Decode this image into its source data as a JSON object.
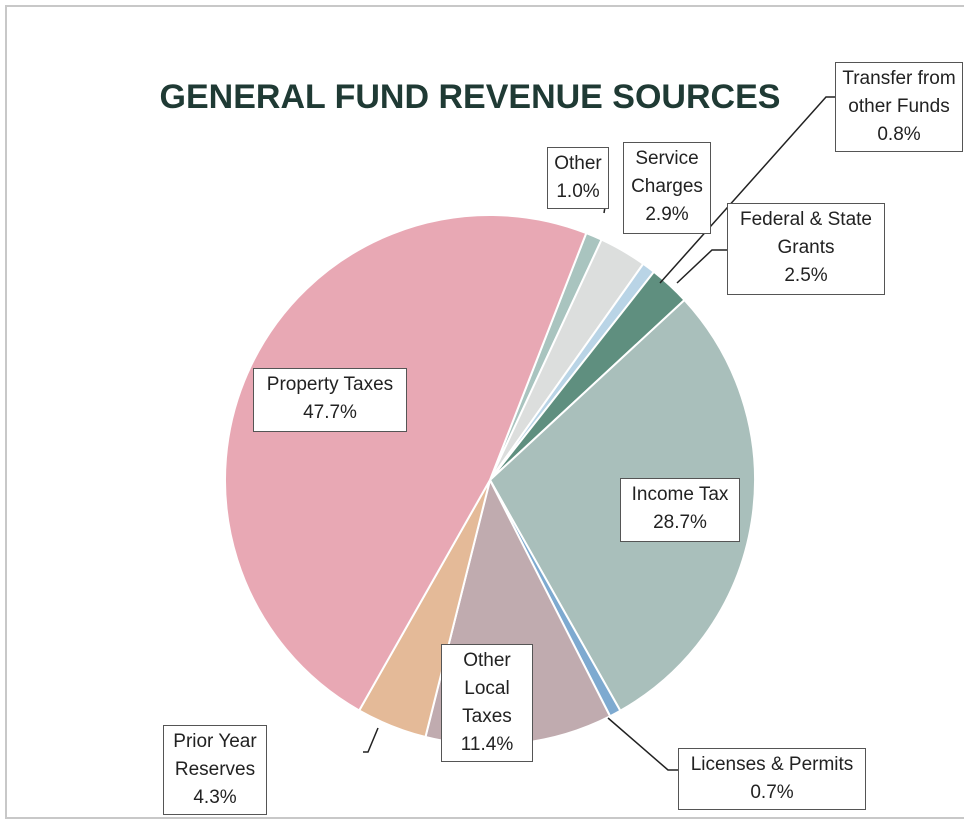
{
  "chart_data": {
    "type": "pie",
    "title": "GENERAL FUND REVENUE SOURCES",
    "categories": [
      "Other",
      "Service Charges",
      "Transfer from other Funds",
      "Federal & State Grants",
      "Income Tax",
      "Licenses & Permits",
      "Other Local Taxes",
      "Prior Year Reserves",
      "Property Taxes"
    ],
    "values": [
      1.0,
      2.9,
      0.8,
      2.5,
      28.7,
      0.7,
      11.4,
      4.3,
      47.7
    ],
    "value_labels": [
      "1.0%",
      "2.9%",
      "0.8%",
      "2.5%",
      "28.7%",
      "0.7%",
      "11.4%",
      "4.3%",
      "47.7%"
    ],
    "colors": [
      "#a9c4bf",
      "#dcdedd",
      "#b9d4e6",
      "#5f8f7f",
      "#a9bfbb",
      "#7eaad0",
      "#c0abaf",
      "#e4ba98",
      "#e8a8b4"
    ]
  }
}
